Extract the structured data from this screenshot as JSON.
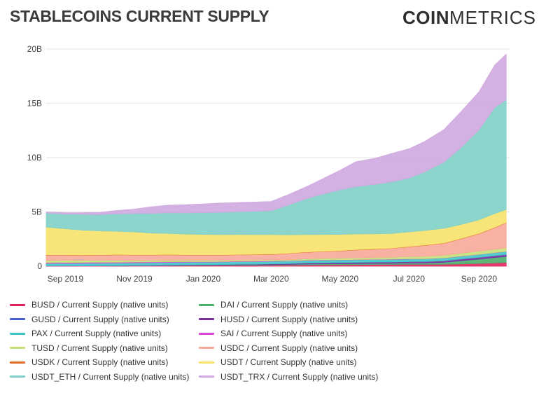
{
  "header": {
    "title": "STABLECOINS CURRENT SUPPLY",
    "brand_strong": "COIN",
    "brand_light": "METRICS"
  },
  "chart_data": {
    "type": "area",
    "stacked": true,
    "title": "STABLECOINS CURRENT SUPPLY",
    "x": [
      "2019-08-15",
      "2019-09-01",
      "2019-09-15",
      "2019-10-01",
      "2019-10-15",
      "2019-11-01",
      "2019-11-15",
      "2019-12-01",
      "2019-12-15",
      "2020-01-01",
      "2020-01-15",
      "2020-02-01",
      "2020-02-15",
      "2020-03-01",
      "2020-03-15",
      "2020-04-01",
      "2020-04-15",
      "2020-05-01",
      "2020-05-15",
      "2020-06-01",
      "2020-06-15",
      "2020-07-01",
      "2020-07-15",
      "2020-08-01",
      "2020-08-15",
      "2020-09-01",
      "2020-09-15",
      "2020-09-25"
    ],
    "x_tick_labels": [
      "Sep 2019",
      "Nov 2019",
      "Jan 2020",
      "Mar 2020",
      "May 2020",
      "Jul 2020",
      "Sep 2020"
    ],
    "x_tick_dates": [
      "2019-09-01",
      "2019-11-01",
      "2020-01-01",
      "2020-03-01",
      "2020-05-01",
      "2020-07-01",
      "2020-09-01"
    ],
    "y_ticks": [
      0,
      5,
      10,
      15,
      20
    ],
    "y_tick_labels": [
      "0",
      "5B",
      "10B",
      "15B",
      "20B"
    ],
    "ylim": [
      0,
      20
    ],
    "y_unit": "billions",
    "legend_position": "bottom",
    "grid": true,
    "series": [
      {
        "name": "BUSD / Current Supply (native units)",
        "color": "#e0245e",
        "values": [
          0.02,
          0.03,
          0.03,
          0.04,
          0.04,
          0.05,
          0.05,
          0.06,
          0.06,
          0.07,
          0.07,
          0.08,
          0.08,
          0.09,
          0.1,
          0.12,
          0.13,
          0.14,
          0.15,
          0.16,
          0.16,
          0.17,
          0.17,
          0.18,
          0.2,
          0.25,
          0.3,
          0.35
        ]
      },
      {
        "name": "DAI / Current Supply (native units)",
        "color": "#4caf6a",
        "values": [
          0,
          0,
          0,
          0,
          0,
          0,
          0,
          0.02,
          0.03,
          0.03,
          0.03,
          0.04,
          0.04,
          0.05,
          0.06,
          0.08,
          0.08,
          0.09,
          0.09,
          0.1,
          0.11,
          0.12,
          0.13,
          0.18,
          0.3,
          0.4,
          0.5,
          0.55
        ]
      },
      {
        "name": "GUSD / Current Supply (native units)",
        "color": "#4a5fd0",
        "values": [
          0.01,
          0.01,
          0.01,
          0.01,
          0.01,
          0.01,
          0.01,
          0.01,
          0.01,
          0.01,
          0.01,
          0.01,
          0.01,
          0.01,
          0.01,
          0.01,
          0.01,
          0.01,
          0.01,
          0.01,
          0.01,
          0.01,
          0.01,
          0.01,
          0.01,
          0.01,
          0.01,
          0.01
        ]
      },
      {
        "name": "HUSD / Current Supply (native units)",
        "color": "#7b2fa0",
        "values": [
          0,
          0,
          0,
          0,
          0.01,
          0.01,
          0.02,
          0.02,
          0.03,
          0.03,
          0.04,
          0.05,
          0.05,
          0.06,
          0.07,
          0.08,
          0.09,
          0.1,
          0.1,
          0.11,
          0.11,
          0.12,
          0.12,
          0.13,
          0.14,
          0.15,
          0.16,
          0.17
        ]
      },
      {
        "name": "PAX / Current Supply (native units)",
        "color": "#3fc6c6",
        "values": [
          0.22,
          0.22,
          0.23,
          0.23,
          0.23,
          0.24,
          0.24,
          0.24,
          0.24,
          0.24,
          0.24,
          0.24,
          0.24,
          0.24,
          0.24,
          0.24,
          0.24,
          0.24,
          0.24,
          0.24,
          0.24,
          0.24,
          0.24,
          0.25,
          0.25,
          0.26,
          0.26,
          0.26
        ]
      },
      {
        "name": "SAI / Current Supply (native units)",
        "color": "#d946d9",
        "values": [
          0.07,
          0.08,
          0.08,
          0.08,
          0.08,
          0.08,
          0.08,
          0.06,
          0.05,
          0.04,
          0.04,
          0.04,
          0.04,
          0.04,
          0.03,
          0.03,
          0.03,
          0.02,
          0.02,
          0.02,
          0.02,
          0.02,
          0.02,
          0.02,
          0.02,
          0.02,
          0.02,
          0.02
        ]
      },
      {
        "name": "TUSD / Current Supply (native units)",
        "color": "#c5e07a",
        "values": [
          0.2,
          0.2,
          0.19,
          0.18,
          0.17,
          0.15,
          0.14,
          0.13,
          0.13,
          0.12,
          0.12,
          0.11,
          0.11,
          0.1,
          0.1,
          0.12,
          0.14,
          0.15,
          0.16,
          0.17,
          0.18,
          0.2,
          0.22,
          0.24,
          0.27,
          0.3,
          0.32,
          0.33
        ]
      },
      {
        "name": "USDC / Current Supply (native units)",
        "color": "#f7a898",
        "values": [
          0.5,
          0.48,
          0.46,
          0.48,
          0.5,
          0.49,
          0.49,
          0.5,
          0.48,
          0.48,
          0.47,
          0.48,
          0.49,
          0.49,
          0.55,
          0.6,
          0.62,
          0.65,
          0.72,
          0.75,
          0.8,
          0.9,
          1.0,
          1.1,
          1.3,
          1.6,
          2.0,
          2.3
        ]
      },
      {
        "name": "USDK / Current Supply (native units)",
        "color": "#e0692e",
        "values": [
          0.03,
          0.03,
          0.03,
          0.03,
          0.03,
          0.03,
          0.03,
          0.03,
          0.03,
          0.03,
          0.03,
          0.03,
          0.03,
          0.03,
          0.03,
          0.03,
          0.03,
          0.03,
          0.03,
          0.03,
          0.03,
          0.03,
          0.03,
          0.03,
          0.03,
          0.03,
          0.03,
          0.03
        ]
      },
      {
        "name": "USDT / Current Supply (native units)",
        "color": "#f7e26b",
        "values": [
          2.55,
          2.4,
          2.3,
          2.2,
          2.15,
          2.1,
          2.0,
          1.95,
          1.9,
          1.88,
          1.86,
          1.84,
          1.82,
          1.8,
          1.7,
          1.6,
          1.55,
          1.5,
          1.45,
          1.4,
          1.35,
          1.35,
          1.35,
          1.35,
          1.3,
          1.25,
          1.25,
          1.2
        ]
      },
      {
        "name": "USDT_ETH / Current Supply (native units)",
        "color": "#7fd0c6",
        "values": [
          1.3,
          1.35,
          1.45,
          1.5,
          1.6,
          1.7,
          1.8,
          1.9,
          1.95,
          2.0,
          2.05,
          2.1,
          2.15,
          2.2,
          2.7,
          3.3,
          3.7,
          4.1,
          4.35,
          4.55,
          4.75,
          4.95,
          5.4,
          6.1,
          7.0,
          8.3,
          9.8,
          10.1
        ]
      },
      {
        "name": "USDT_TRX / Current Supply (native units)",
        "color": "#cfa8e0",
        "values": [
          0.1,
          0.12,
          0.15,
          0.2,
          0.3,
          0.4,
          0.6,
          0.7,
          0.75,
          0.8,
          0.85,
          0.85,
          0.85,
          0.85,
          0.95,
          1.1,
          1.4,
          1.8,
          2.3,
          2.4,
          2.6,
          2.7,
          2.8,
          3.0,
          3.3,
          3.5,
          3.9,
          4.2
        ]
      }
    ]
  }
}
